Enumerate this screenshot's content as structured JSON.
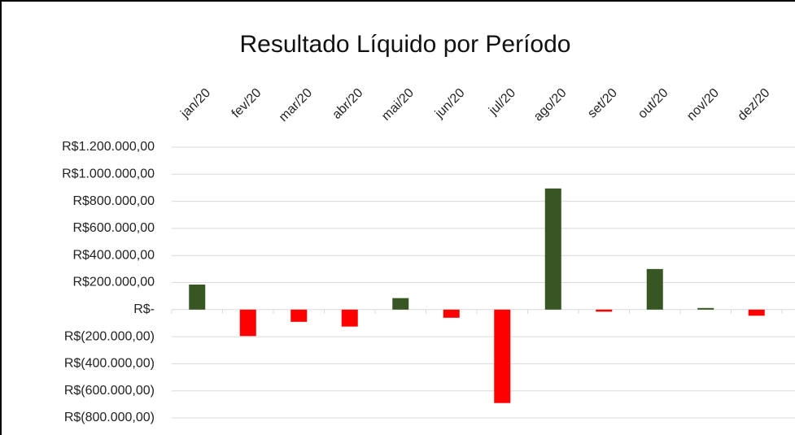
{
  "chart_data": {
    "type": "bar",
    "title": "Resultado Líquido por Período",
    "categories": [
      "jan/20",
      "fev/20",
      "mar/20",
      "abr/20",
      "mai/20",
      "jun/20",
      "jul/20",
      "ago/20",
      "set/20",
      "out/20",
      "nov/20",
      "dez/20"
    ],
    "values": [
      185000,
      -195000,
      -90000,
      -125000,
      85000,
      -60000,
      -690000,
      895000,
      -15000,
      300000,
      12000,
      -45000
    ],
    "positive_color": "#375623",
    "negative_color": "#ff0000",
    "ylim": [
      -800000,
      1200000
    ],
    "yticks": [
      {
        "value": -800000,
        "label": "R$(800.000,00)"
      },
      {
        "value": -600000,
        "label": "R$(600.000,00)"
      },
      {
        "value": -400000,
        "label": "R$(400.000,00)"
      },
      {
        "value": -200000,
        "label": "R$(200.000,00)"
      },
      {
        "value": 0,
        "label": "R$-"
      },
      {
        "value": 200000,
        "label": "R$200.000,00"
      },
      {
        "value": 400000,
        "label": "R$400.000,00"
      },
      {
        "value": 600000,
        "label": "R$600.000,00"
      },
      {
        "value": 800000,
        "label": "R$800.000,00"
      },
      {
        "value": 1000000,
        "label": "R$1.000.000,00"
      },
      {
        "value": 1200000,
        "label": "R$1.200.000,00"
      }
    ],
    "grid": true
  }
}
